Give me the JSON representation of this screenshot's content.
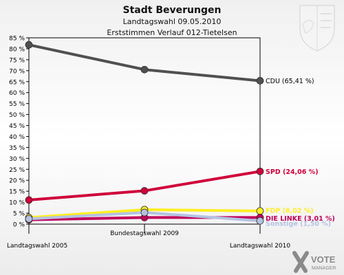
{
  "chart_data": {
    "type": "line",
    "title": "Stadt Beverungen",
    "subtitle": "Landtagswahl 09.05.2010",
    "subtitle2": "Erststimmen Verlauf 012-Tietelsen",
    "x": [
      "Landtagswahl 2005",
      "Bundestagswahl 2009",
      "Landtagswahl 2010"
    ],
    "ylim": [
      0,
      85
    ],
    "y_tick_labels": [
      "0 %",
      "5 %",
      "10 %",
      "15 %",
      "20 %",
      "25 %",
      "30 %",
      "35 %",
      "40 %",
      "45 %",
      "50 %",
      "55 %",
      "60 %",
      "65 %",
      "70 %",
      "75 %",
      "80 %",
      "85 %"
    ],
    "grid": false,
    "series": [
      {
        "name": "CDU",
        "values": [
          81.8,
          70.5,
          65.41
        ],
        "label": "CDU (65,41 %)",
        "color": "#505050"
      },
      {
        "name": "SPD",
        "values": [
          11.0,
          15.2,
          24.06
        ],
        "label": "SPD (24,06 %)",
        "color": "#d0003a"
      },
      {
        "name": "FDP",
        "values": [
          3.0,
          6.6,
          6.0
        ],
        "label": "FDP (6,02 %)",
        "color": "#ffee22"
      },
      {
        "name": "DIE LINKE",
        "values": [
          2.0,
          3.0,
          3.01
        ],
        "label": "DIE LINKE (3,01 %)",
        "color": "#c0005a"
      },
      {
        "name": "Sonstige",
        "values": [
          2.4,
          5.3,
          1.5
        ],
        "label": "Sonstige (1,50 %)",
        "color": "#b4c2e2"
      }
    ]
  },
  "branding": {
    "logo_text_1": "VOTE",
    "logo_text_2": "MANAGER"
  }
}
